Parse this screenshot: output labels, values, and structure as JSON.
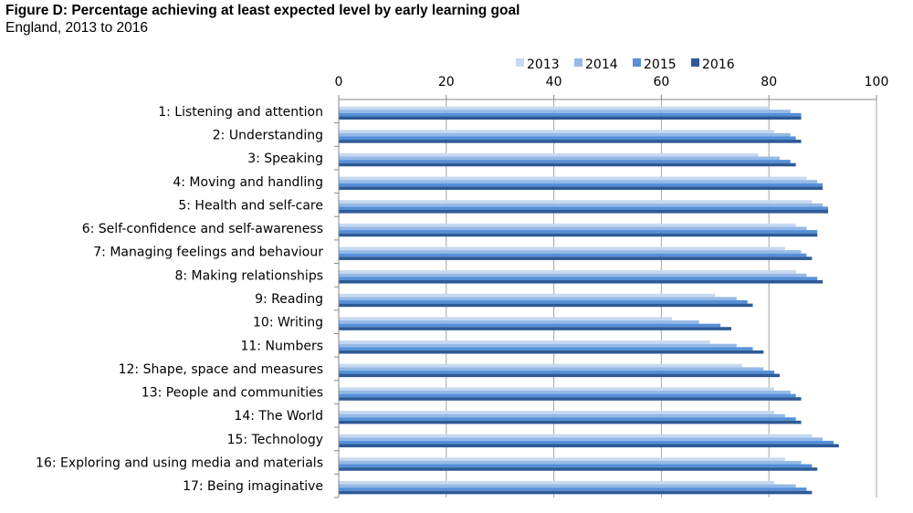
{
  "chart_data": {
    "type": "bar",
    "orientation": "horizontal",
    "title": "Figure D: Percentage achieving at least expected level by early learning goal",
    "subtitle": "England, 2013 to 2016",
    "categories": [
      "1: Listening and attention",
      "2: Understanding",
      "3: Speaking",
      "4: Moving and handling",
      "5: Health and self-care",
      "6: Self-confidence and self-awareness",
      "7: Managing feelings and behaviour",
      "8: Making relationships",
      "9: Reading",
      "10: Writing",
      "11: Numbers",
      "12: Shape, space and measures",
      "13: People and communities",
      "14: The World",
      "15: Technology",
      "16: Exploring and using media and materials",
      "17: Being imaginative"
    ],
    "series": [
      {
        "name": "2013",
        "color": "#c6d9f1",
        "values": [
          80,
          81,
          78,
          87,
          88,
          85,
          83,
          85,
          70,
          62,
          69,
          75,
          81,
          81,
          88,
          83,
          81
        ]
      },
      {
        "name": "2014",
        "color": "#95b9e6",
        "values": [
          84,
          84,
          82,
          89,
          90,
          87,
          86,
          87,
          74,
          67,
          74,
          79,
          84,
          83,
          90,
          86,
          85
        ]
      },
      {
        "name": "2015",
        "color": "#5590d8",
        "values": [
          86,
          85,
          84,
          90,
          91,
          89,
          87,
          89,
          76,
          71,
          77,
          81,
          85,
          85,
          92,
          88,
          87
        ]
      },
      {
        "name": "2016",
        "color": "#2e5a95",
        "values": [
          86,
          86,
          85,
          90,
          91,
          89,
          88,
          90,
          77,
          73,
          79,
          82,
          86,
          86,
          93,
          89,
          88
        ]
      }
    ],
    "xlim": [
      0,
      100
    ],
    "xticks": [
      "0",
      "20",
      "40",
      "60",
      "80",
      "100"
    ],
    "xaxis_position": "top",
    "grid": true,
    "legend": "top"
  }
}
